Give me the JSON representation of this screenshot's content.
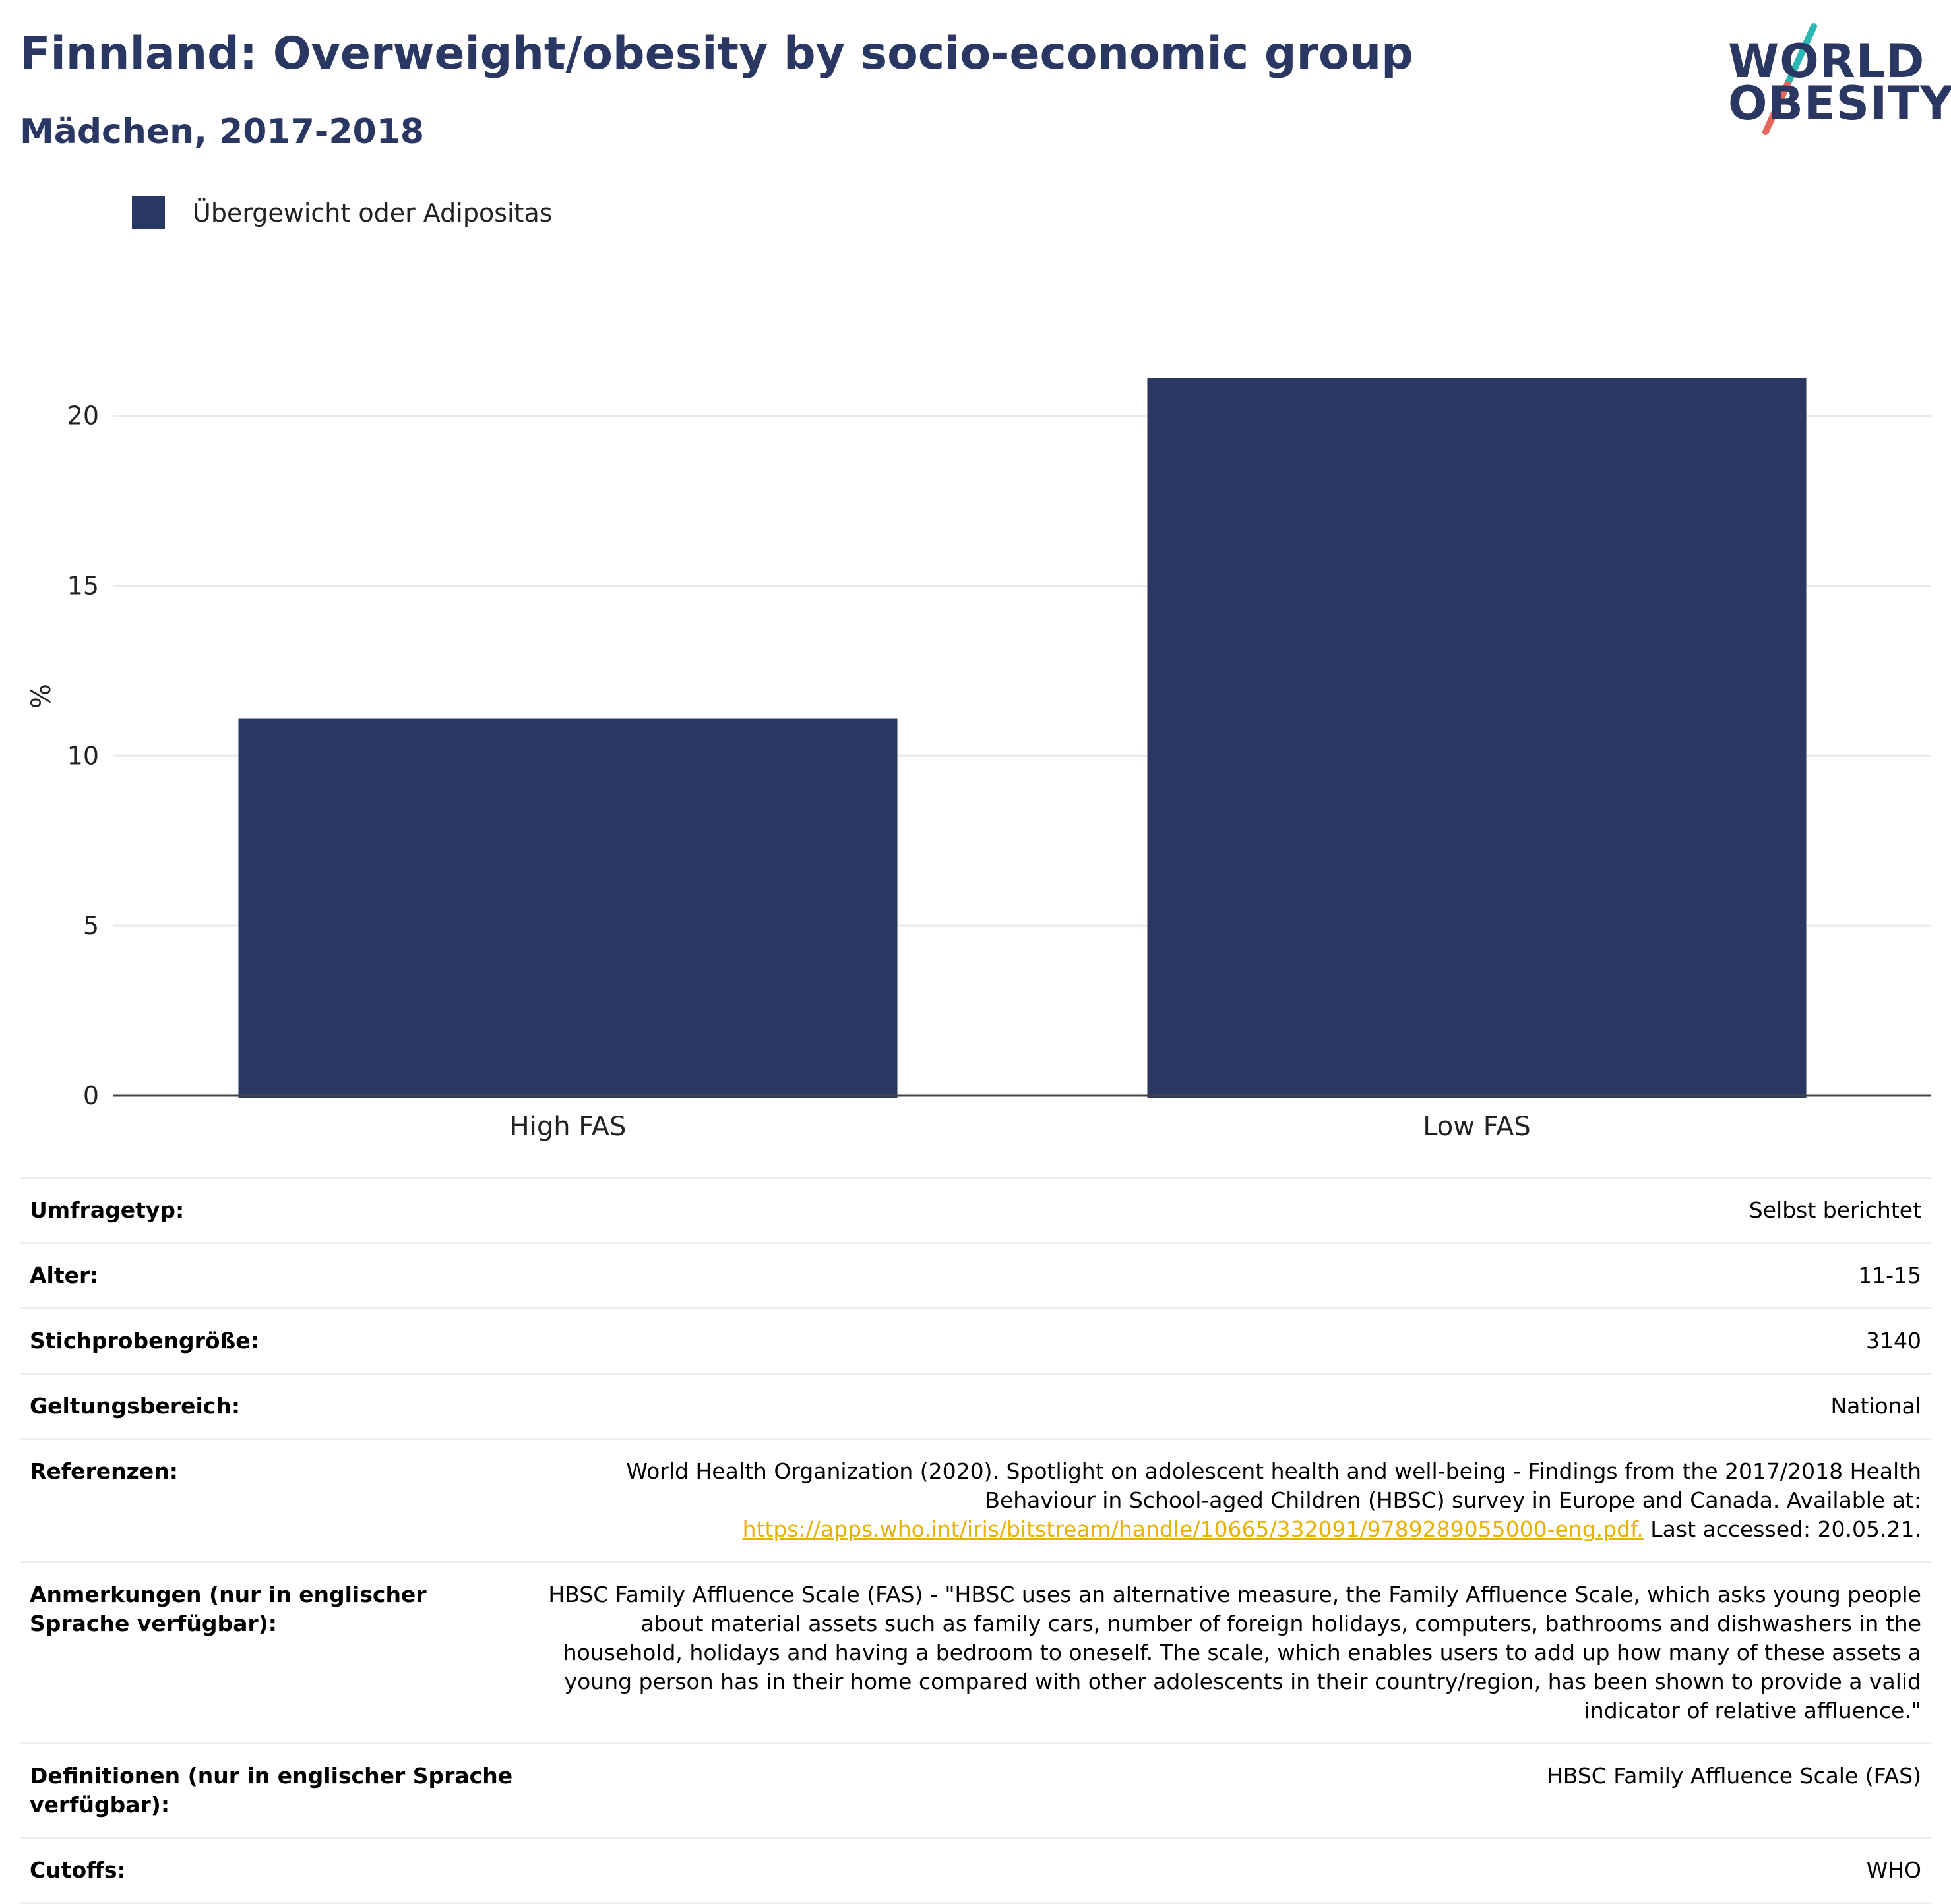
{
  "header": {
    "title": "Finnland: Overweight/obesity by socio-economic group",
    "subtitle": "Mädchen, 2017-2018",
    "logo_line1": "WORLD",
    "logo_line2": "OBESITY",
    "logo_colors": {
      "teal": "#2bb7b3",
      "coral": "#e8675b",
      "navy": "#2a3763"
    }
  },
  "legend": {
    "label": "Übergewicht oder Adipositas",
    "color": "#2a3763"
  },
  "chart_data": {
    "type": "bar",
    "categories": [
      "High FAS",
      "Low FAS"
    ],
    "series": [
      {
        "name": "Übergewicht oder Adipositas",
        "values": [
          11.1,
          21.1
        ],
        "color": "#2a3763"
      }
    ],
    "xlabel": "",
    "ylabel": "%",
    "ylim": [
      0,
      23.5
    ],
    "yticks": [
      0,
      5,
      10,
      15,
      20
    ],
    "grid": true,
    "legend_position": "top-left"
  },
  "metadata": {
    "rows": [
      {
        "key": "Umfragetyp:",
        "value": "Selbst berichtet"
      },
      {
        "key": "Alter:",
        "value": "11-15"
      },
      {
        "key": "Stichprobengröße:",
        "value": "3140"
      },
      {
        "key": "Geltungsbereich:",
        "value": "National"
      },
      {
        "key": "Referenzen:",
        "value": "World Health Organization (2020). Spotlight on adolescent health and well-being - Findings from the 2017/2018 Health Behaviour in School-aged Children (HBSC) survey in Europe and Canada. Available at:",
        "link": "https://apps.who.int/iris/bitstream/handle/10665/332091/9789289055000-eng.pdf.",
        "suffix": " Last accessed: 20.05.21."
      },
      {
        "key": "Anmerkungen (nur in englischer Sprache verfügbar):",
        "value": "HBSC Family Affluence Scale (FAS) - \"HBSC uses an alternative measure, the Family Affluence Scale, which asks young people about material assets such as family cars, number of foreign holidays, computers, bathrooms and dishwashers in the household, holidays and having a bedroom to oneself. The scale, which enables users to add up how many of these assets a young person has in their home compared with other adolescents in their country/region, has been shown to provide a valid indicator of relative affluence.\""
      },
      {
        "key": "Definitionen (nur in englischer Sprache verfügbar):",
        "value": "HBSC Family Affluence Scale (FAS)"
      },
      {
        "key": "Cutoffs:",
        "value": "WHO"
      }
    ]
  }
}
